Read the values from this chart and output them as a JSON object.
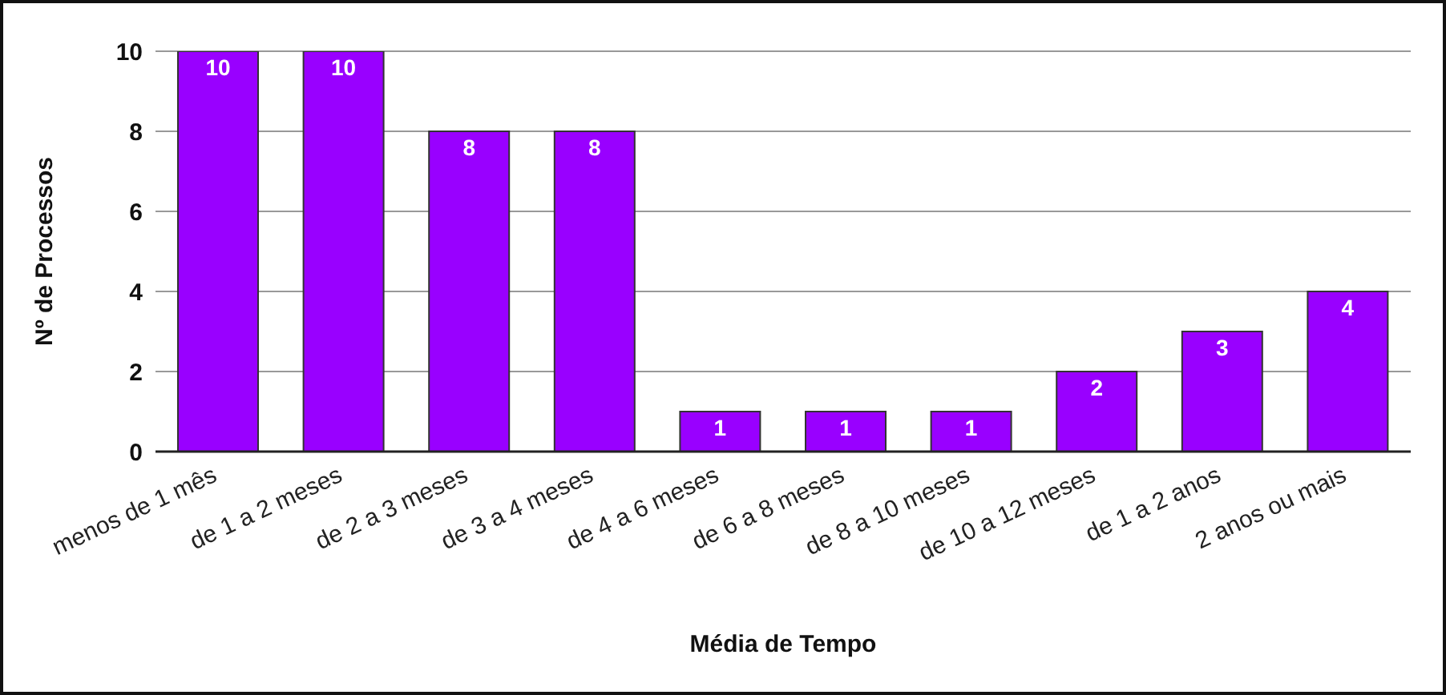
{
  "chart_data": {
    "type": "bar",
    "xlabel": "Média de Tempo",
    "ylabel": "Nº de Processos",
    "categories": [
      "menos de 1 mês",
      "de 1 a 2 meses",
      "de 2 a 3 meses",
      "de 3 a 4 meses",
      "de 4 a 6 meses",
      "de 6 a 8 meses",
      "de 8 a 10 meses",
      "de 10 a 12 meses",
      "de 1 a 2 anos",
      "2 anos ou mais"
    ],
    "values": [
      10,
      10,
      8,
      8,
      1,
      1,
      1,
      2,
      3,
      4
    ],
    "color": "#9900ff",
    "ylim": [
      0,
      10
    ],
    "yticks": [
      0,
      2,
      4,
      6,
      8,
      10
    ],
    "grid": "y",
    "data_labels": true,
    "legend": false
  }
}
